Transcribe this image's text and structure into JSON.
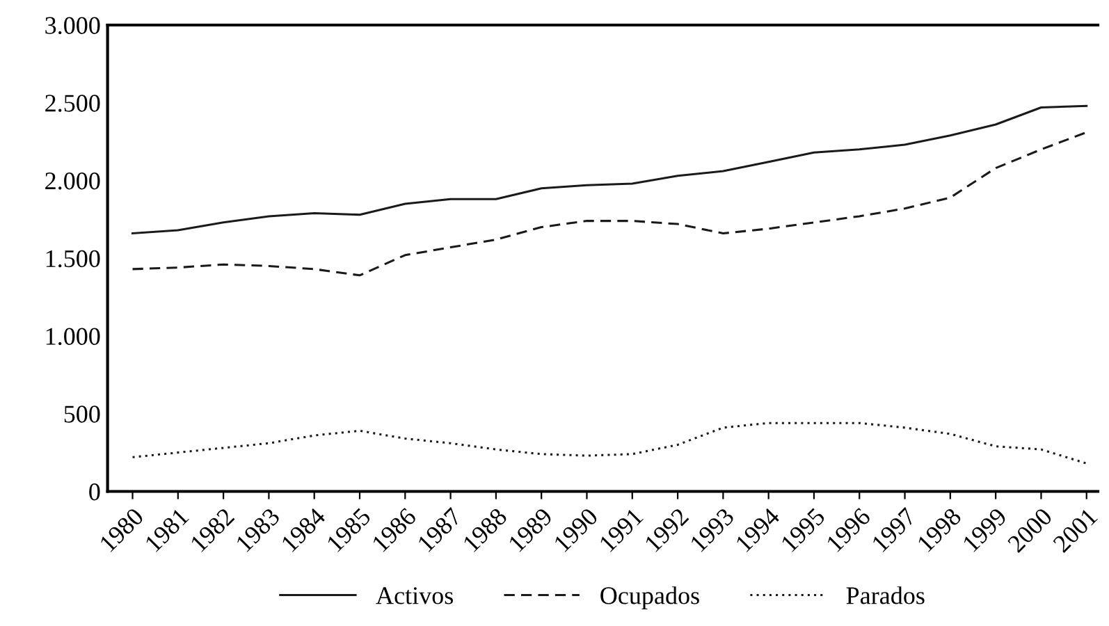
{
  "chart_data": {
    "type": "line",
    "categories": [
      "1980",
      "1981",
      "1982",
      "1983",
      "1984",
      "1985",
      "1986",
      "1987",
      "1988",
      "1989",
      "1990",
      "1991",
      "1992",
      "1993",
      "1994",
      "1995",
      "1996",
      "1997",
      "1998",
      "1999",
      "2000",
      "2001"
    ],
    "series": [
      {
        "name": "Activos",
        "color": "#1a1a1a",
        "line_style": "solid",
        "values": [
          1660,
          1680,
          1730,
          1770,
          1790,
          1780,
          1850,
          1880,
          1880,
          1950,
          1970,
          1980,
          2030,
          2060,
          2120,
          2180,
          2200,
          2230,
          2290,
          2360,
          2470,
          2480
        ]
      },
      {
        "name": "Ocupados",
        "color": "#1a1a1a",
        "line_style": "dashed",
        "values": [
          1430,
          1440,
          1460,
          1450,
          1430,
          1390,
          1520,
          1570,
          1620,
          1700,
          1740,
          1740,
          1720,
          1660,
          1690,
          1730,
          1770,
          1820,
          1890,
          2080,
          2200,
          2310
        ]
      },
      {
        "name": "Parados",
        "color": "#1a1a1a",
        "line_style": "dotted",
        "values": [
          220,
          250,
          280,
          310,
          360,
          390,
          340,
          310,
          270,
          240,
          230,
          240,
          300,
          410,
          440,
          440,
          440,
          410,
          370,
          290,
          270,
          180
        ]
      }
    ],
    "ylim": [
      0,
      3000
    ],
    "yticks": [
      0,
      {
        "value": 500,
        "label": "500"
      },
      {
        "value": 1000,
        "label": "1.000"
      },
      {
        "value": 1500,
        "label": "1.500"
      },
      {
        "value": 2000,
        "label": "2.000"
      },
      {
        "value": 2500,
        "label": "2.500"
      },
      {
        "value": 3000,
        "label": "3.000"
      }
    ],
    "grid": false,
    "legend": "bottom",
    "marker": "none"
  }
}
